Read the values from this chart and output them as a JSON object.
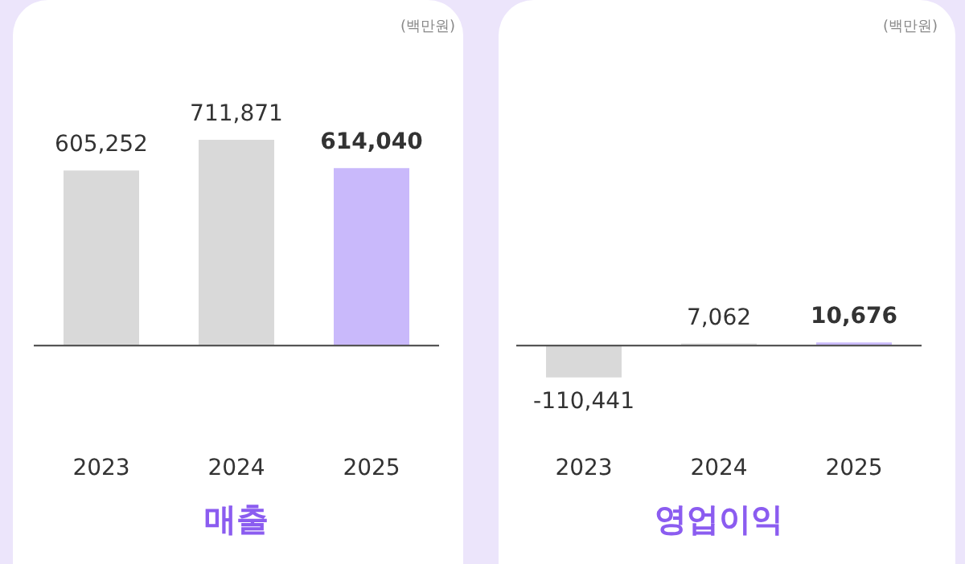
{
  "chart_data": [
    {
      "type": "bar",
      "title": "매출",
      "categories": [
        "2023",
        "2024",
        "2025"
      ],
      "values": [
        605252,
        711871,
        614040
      ],
      "colors": [
        "#d9d9d9",
        "#d9d9d9",
        "#c9b9fb"
      ],
      "value_labels": [
        "605,252",
        "711,871",
        "614,040"
      ],
      "annotations": [
        "(백만원)"
      ]
    },
    {
      "type": "bar",
      "title": "영업이익",
      "categories": [
        "2023",
        "2024",
        "2025"
      ],
      "values": [
        -110441,
        7062,
        10676
      ],
      "colors": [
        "#d9d9d9",
        "#d9d9d9",
        "#c9b9fb"
      ],
      "value_labels": [
        "-110,441",
        "7,062",
        "10,676"
      ],
      "annotations": [
        "(백만원)"
      ]
    }
  ]
}
